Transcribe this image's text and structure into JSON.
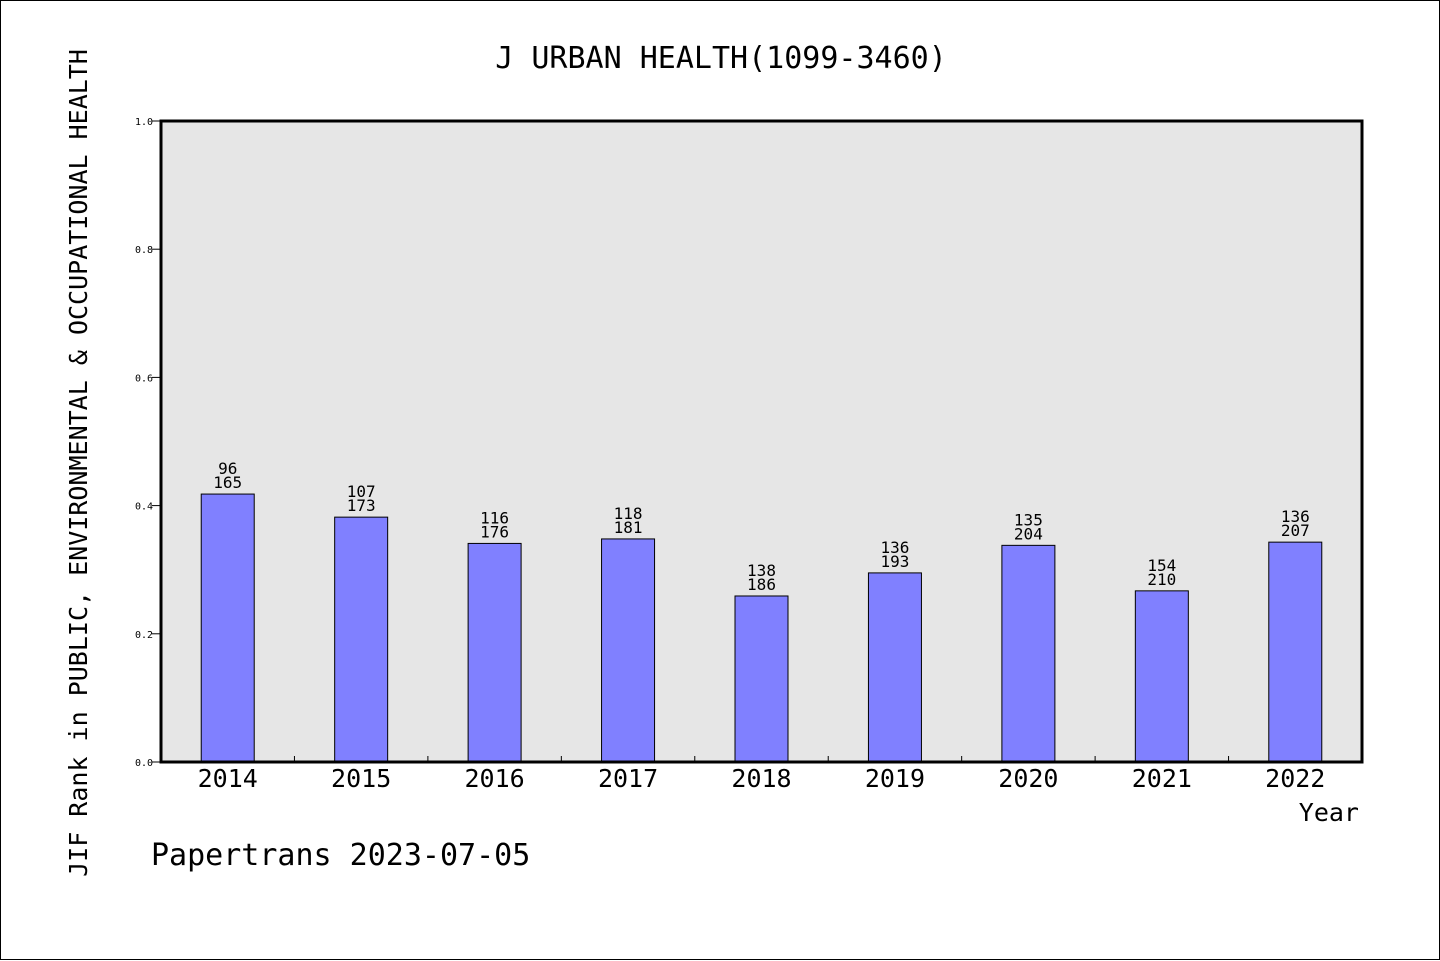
{
  "chart_data": {
    "type": "bar",
    "title": "J URBAN HEALTH(1099-3460)",
    "xlabel": "Year",
    "ylabel": "JIF Rank in PUBLIC, ENVIRONMENTAL & OCCUPATIONAL HEALTH",
    "categories": [
      "2014",
      "2015",
      "2016",
      "2017",
      "2018",
      "2019",
      "2020",
      "2021",
      "2022"
    ],
    "values": [
      0.418,
      0.382,
      0.341,
      0.348,
      0.259,
      0.295,
      0.338,
      0.267,
      0.343
    ],
    "rank": [
      "96",
      "107",
      "116",
      "118",
      "138",
      "136",
      "135",
      "154",
      "136"
    ],
    "total": [
      "165",
      "173",
      "176",
      "181",
      "186",
      "193",
      "204",
      "210",
      "207"
    ],
    "ylim": [
      0,
      1.0
    ],
    "yticks": [
      "0.0",
      "0.2",
      "0.4",
      "0.6",
      "0.8",
      "1.0"
    ],
    "grid": false,
    "legend": "none",
    "colors": {
      "bar": "#8080ff",
      "plot_bg": "#e6e6e6",
      "axis": "#000000"
    }
  },
  "footer": {
    "credit": "Papertrans 2023-07-05"
  }
}
